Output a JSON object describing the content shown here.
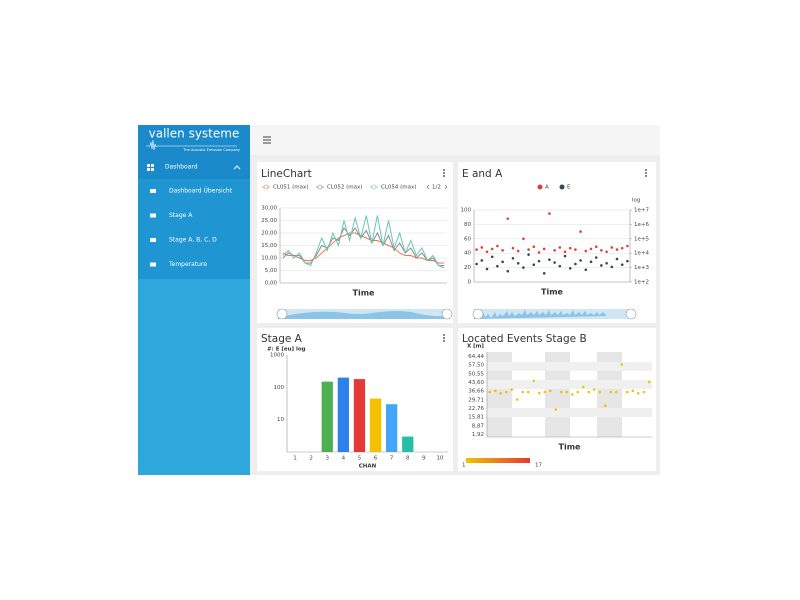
{
  "sidebar": {
    "logo": "vallen systeme",
    "tagline": "The Acoustic Emission Company",
    "menu": {
      "label": "Dashboard",
      "items": [
        "Dashboard Übersicht",
        "Stage A",
        "Stage A, B, C, D",
        "Temperature"
      ]
    }
  },
  "chart_data": [
    {
      "type": "line",
      "title": "LineChart",
      "legend_pager": "1/2",
      "xlabel": "Time",
      "categories": [
        null,
        null,
        null,
        null,
        null,
        null,
        null,
        null,
        null,
        null,
        null,
        null,
        null,
        null,
        null,
        null,
        null,
        null,
        null,
        null,
        null,
        null,
        null,
        null,
        null,
        null,
        null,
        null,
        null,
        null
      ],
      "ylim": [
        0,
        30
      ],
      "yticks": [
        {
          "value": 0,
          "label": "0,00"
        },
        {
          "value": 5,
          "label": "5,00"
        },
        {
          "value": 10,
          "label": "10,00"
        },
        {
          "value": 15,
          "label": "15,00"
        },
        {
          "value": 20,
          "label": "20,00"
        },
        {
          "value": 25,
          "label": "25,00"
        },
        {
          "value": 30,
          "label": "30,00"
        }
      ],
      "grid": true,
      "series": [
        {
          "name": "CL051 (max)",
          "color": "#e8794a",
          "values": [
            12,
            11,
            11,
            10,
            9,
            9,
            10,
            12,
            14,
            16,
            18,
            19,
            20,
            20,
            19,
            18,
            17,
            17,
            16,
            15,
            14,
            12,
            11,
            11,
            10,
            10,
            9,
            9,
            8,
            8
          ]
        },
        {
          "name": "CL052 (max)",
          "color": "#8a8a8a",
          "values": [
            10,
            12,
            11,
            11,
            8,
            8,
            11,
            15,
            14,
            18,
            17,
            22,
            19,
            22,
            18,
            21,
            16,
            20,
            15,
            19,
            13,
            16,
            12,
            14,
            10,
            12,
            9,
            10,
            7,
            7
          ]
        },
        {
          "name": "CL054 (max)",
          "color": "#6cc3b9",
          "values": [
            11,
            13,
            10,
            12,
            8,
            7,
            12,
            18,
            13,
            20,
            15,
            25,
            17,
            26,
            18,
            27,
            16,
            27,
            15,
            25,
            14,
            20,
            12,
            17,
            11,
            14,
            9,
            11,
            7,
            6
          ]
        }
      ]
    },
    {
      "type": "scatter",
      "title": "E and A",
      "xlabel": "Time",
      "y2label": "log",
      "categories": [
        null,
        null,
        null,
        null,
        null,
        null,
        null,
        null,
        null,
        null,
        null,
        null,
        null,
        null,
        null,
        null,
        null,
        null,
        null,
        null,
        null,
        null,
        null,
        null,
        null,
        null,
        null,
        null,
        null,
        null
      ],
      "ylim": [
        0,
        100
      ],
      "yticks": [
        0,
        20,
        40,
        60,
        80,
        100
      ],
      "grid": true,
      "y2lim": [
        100,
        10000000
      ],
      "y2log": true,
      "y2ticks": [
        {
          "value": 100,
          "label": "1e+2"
        },
        {
          "value": 1000,
          "label": "1e+3"
        },
        {
          "value": 10000,
          "label": "1e+4"
        },
        {
          "value": 100000,
          "label": "1e+5"
        },
        {
          "value": 1000000,
          "label": "1e+6"
        },
        {
          "value": 10000000,
          "label": "1e+7"
        }
      ],
      "series": [
        {
          "name": "A",
          "color": "#e0403a",
          "values": [
            45,
            48,
            42,
            46,
            50,
            44,
            88,
            47,
            43,
            60,
            45,
            49,
            41,
            46,
            95,
            44,
            48,
            42,
            47,
            45,
            70,
            43,
            46,
            49,
            44,
            42,
            48,
            45,
            47,
            50
          ]
        },
        {
          "name": "E",
          "color": "#34495e",
          "values": [
            25,
            30,
            18,
            35,
            22,
            28,
            15,
            33,
            26,
            20,
            38,
            24,
            29,
            12,
            31,
            27,
            22,
            36,
            19,
            25,
            30,
            17,
            28,
            34,
            23,
            26,
            21,
            32,
            24,
            29
          ]
        }
      ]
    },
    {
      "type": "bar",
      "title": "Stage A",
      "ylabel": "#: E [eu] log",
      "xlabel": "CHAN",
      "ylog": true,
      "categories": [
        "1",
        "2",
        "3",
        "4",
        "5",
        "6",
        "7",
        "8",
        "9",
        "10"
      ],
      "values": [
        null,
        null,
        150,
        200,
        180,
        45,
        30,
        3,
        null,
        null
      ],
      "colors": [
        null,
        null,
        "#4caf50",
        "#2f80ed",
        "#e53935",
        "#f2c200",
        "#42a5f5",
        "#26bfa5",
        null,
        null
      ],
      "ylim": [
        1,
        1000
      ],
      "yticks": [
        10,
        100,
        1000
      ]
    },
    {
      "type": "scatter",
      "title": "Located Events Stage B",
      "ylabel": "X [m]",
      "xlabel": "Time",
      "categories": [
        null,
        null,
        null,
        null,
        null,
        null,
        null,
        null,
        null,
        null,
        null,
        null,
        null,
        null,
        null,
        null,
        null,
        null,
        null,
        null,
        null,
        null,
        null,
        null,
        null,
        null,
        null,
        null,
        null,
        null
      ],
      "ylim": [
        0,
        68
      ],
      "yticks": [
        {
          "value": 1.92,
          "label": "1,92"
        },
        {
          "value": 8.87,
          "label": "8,87"
        },
        {
          "value": 15.81,
          "label": "15,81"
        },
        {
          "value": 22.76,
          "label": "22,76"
        },
        {
          "value": 29.71,
          "label": "29,71"
        },
        {
          "value": 36.66,
          "label": "36,66"
        },
        {
          "value": 43.6,
          "label": "43,60"
        },
        {
          "value": 50.55,
          "label": "50,55"
        },
        {
          "value": 57.5,
          "label": "57,50"
        },
        {
          "value": 64.44,
          "label": "64,44"
        }
      ],
      "series": [
        {
          "color": "#f2c200",
          "values": [
            36,
            37,
            35,
            36,
            38,
            30,
            36,
            36,
            45,
            35,
            36,
            37,
            22,
            36,
            36,
            34,
            36,
            40,
            36,
            38,
            36,
            25,
            36,
            36,
            58,
            36,
            37,
            35,
            36,
            44
          ]
        }
      ],
      "colorbar": {
        "min": 1,
        "max": 17,
        "colors": [
          "#f2c200",
          "#e53935"
        ]
      }
    }
  ]
}
